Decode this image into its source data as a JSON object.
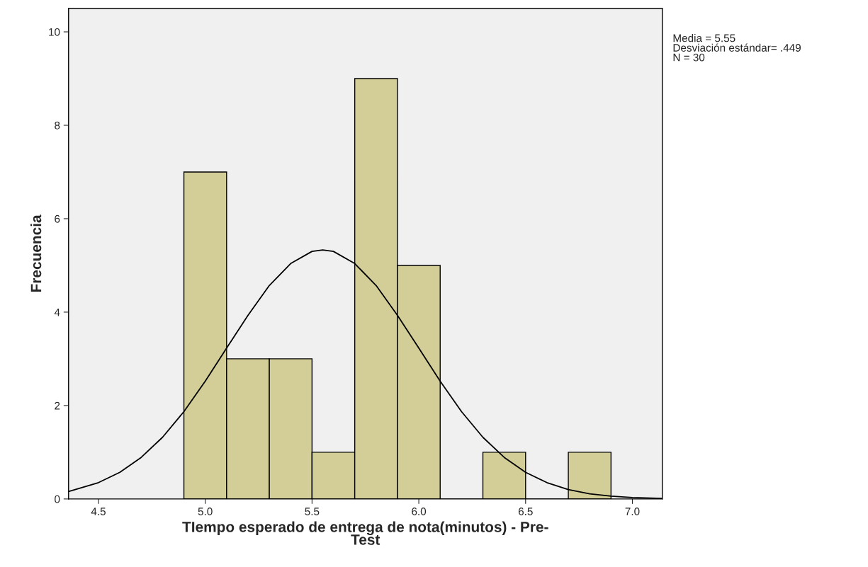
{
  "chart_data": {
    "type": "histogram",
    "xlabel": "TIempo esperado de entrega de nota(minutos) - Pre-\nTest",
    "ylabel": "Frecuencia",
    "bins": [
      4.9,
      5.1,
      5.3,
      5.5,
      5.7,
      5.9,
      6.1,
      6.3,
      6.5,
      6.7,
      6.9
    ],
    "values": [
      7,
      3,
      3,
      1,
      9,
      5,
      0,
      1,
      0,
      1
    ],
    "color": "#d3ce97",
    "series": [
      {
        "type": "line",
        "color": "#000000",
        "x": [
          4.36,
          4.5,
          4.6,
          4.7,
          4.8,
          4.9,
          5.0,
          5.1,
          5.2,
          5.3,
          5.4,
          5.5,
          5.55,
          5.6,
          5.7,
          5.8,
          5.9,
          6.0,
          6.1,
          6.2,
          6.3,
          6.4,
          6.5,
          6.6,
          6.7,
          6.8,
          6.9,
          7.0,
          7.14
        ],
        "values": [
          0.16,
          0.35,
          0.57,
          0.89,
          1.32,
          1.87,
          2.52,
          3.23,
          3.93,
          4.57,
          5.04,
          5.3,
          5.33,
          5.3,
          5.04,
          4.57,
          3.93,
          3.23,
          2.52,
          1.87,
          1.32,
          0.89,
          0.57,
          0.35,
          0.2,
          0.11,
          0.06,
          0.03,
          0.01
        ]
      }
    ],
    "xlim": [
      4.36,
      7.14
    ],
    "ylim": [
      0,
      10.5
    ],
    "xticks": [
      {
        "value": 4.5,
        "label": "4.5"
      },
      {
        "value": 5.0,
        "label": "5.0"
      },
      {
        "value": 5.5,
        "label": "5.5"
      },
      {
        "value": 6.0,
        "label": "6.0"
      },
      {
        "value": 6.5,
        "label": "6.5"
      },
      {
        "value": 7.0,
        "label": "7.0"
      }
    ],
    "yticks": [
      0,
      2,
      4,
      6,
      8,
      10
    ],
    "grid": false,
    "annotations": [
      "Media = 5.55",
      "Desviación estándar= .449",
      "N = 30"
    ]
  }
}
